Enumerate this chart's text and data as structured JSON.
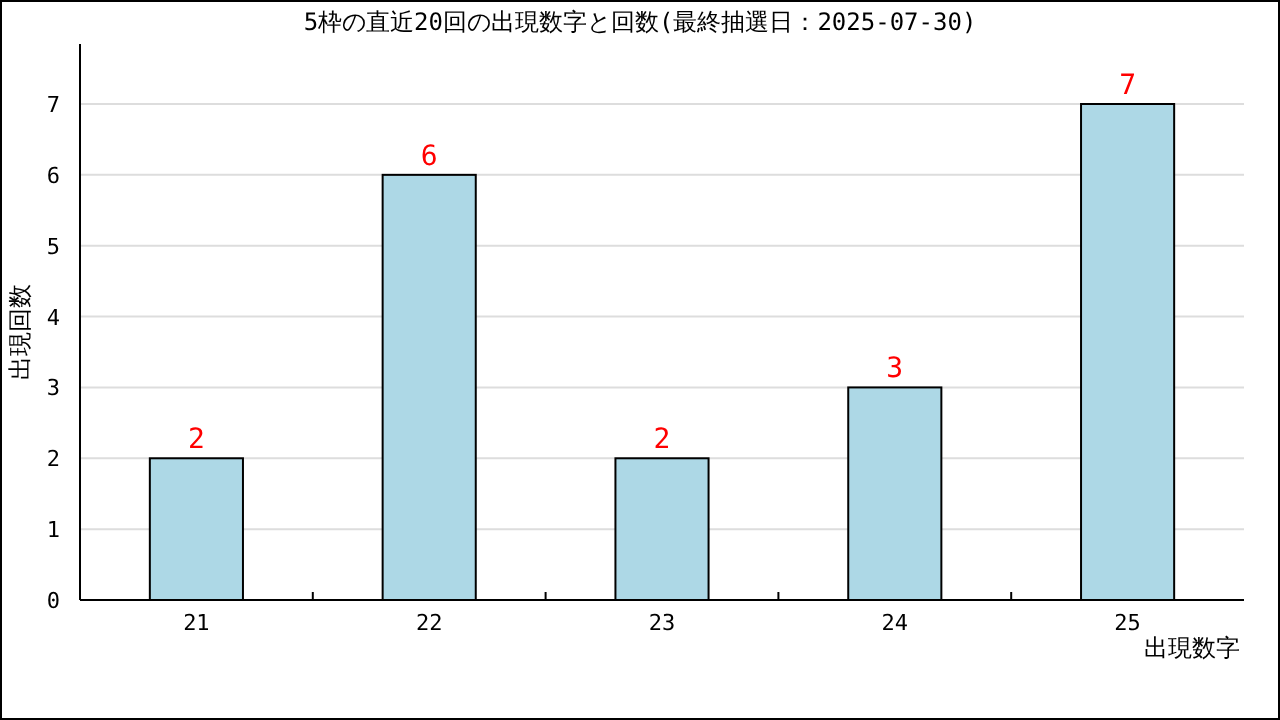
{
  "chart_data": {
    "type": "bar",
    "title": "5枠の直近20回の出現数字と回数(最終抽選日：2025-07-30)",
    "xlabel": "出現数字",
    "ylabel": "出現回数",
    "categories": [
      "21",
      "22",
      "23",
      "24",
      "25"
    ],
    "series": [
      {
        "color": "#add8e6",
        "values": [
          2,
          6,
          2,
          3,
          7
        ]
      }
    ],
    "ylim": [
      0,
      7
    ],
    "yticks": [
      0,
      1,
      2,
      3,
      4,
      5,
      6,
      7
    ],
    "grid": "y",
    "data_labels": true
  }
}
